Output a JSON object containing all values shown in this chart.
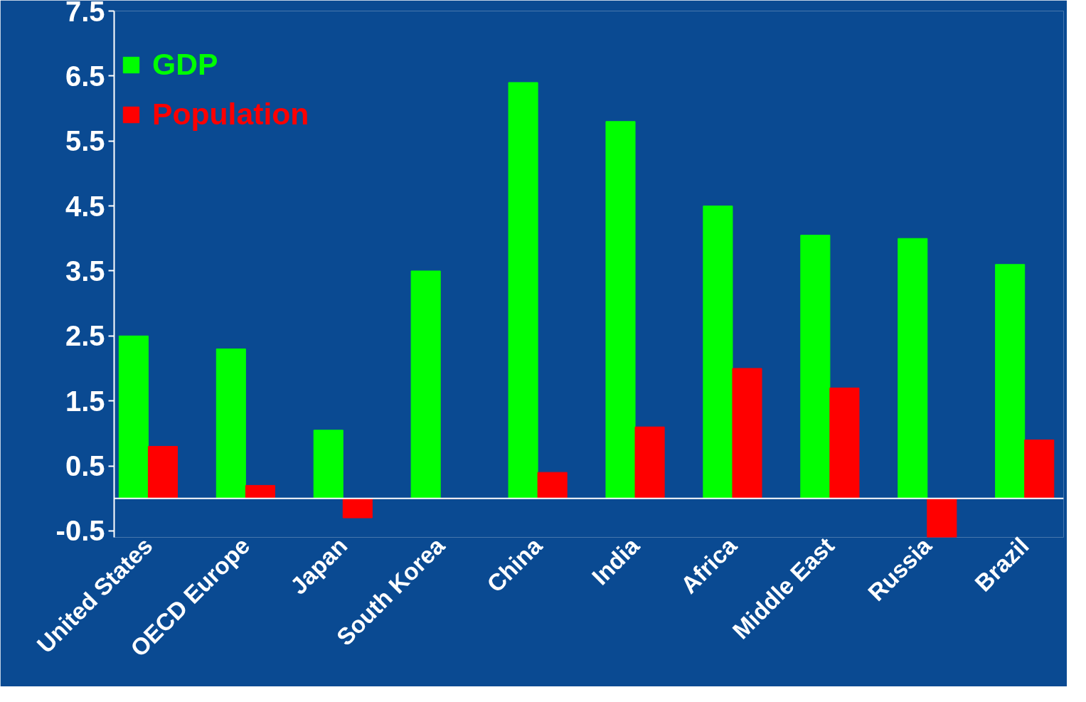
{
  "chart_data": {
    "type": "bar",
    "categories": [
      "United States",
      "OECD Europe",
      "Japan",
      "South Korea",
      "China",
      "India",
      "Africa",
      "Middle East",
      "Russia",
      "Brazil"
    ],
    "series": [
      {
        "name": "GDP",
        "color": "#00ff00",
        "values": [
          2.5,
          2.3,
          1.05,
          3.5,
          6.4,
          5.8,
          4.5,
          4.05,
          4.0,
          3.6
        ]
      },
      {
        "name": "Population",
        "color": "#ff0000",
        "values": [
          0.8,
          0.2,
          -0.3,
          0,
          0.4,
          1.1,
          2.0,
          1.7,
          -0.6,
          0.9
        ]
      }
    ],
    "ylim": [
      -0.6,
      7.5
    ],
    "yticks": [
      -0.5,
      0.5,
      1.5,
      2.5,
      3.5,
      4.5,
      5.5,
      6.5,
      7.5
    ],
    "grid": false,
    "legend": "top left"
  }
}
